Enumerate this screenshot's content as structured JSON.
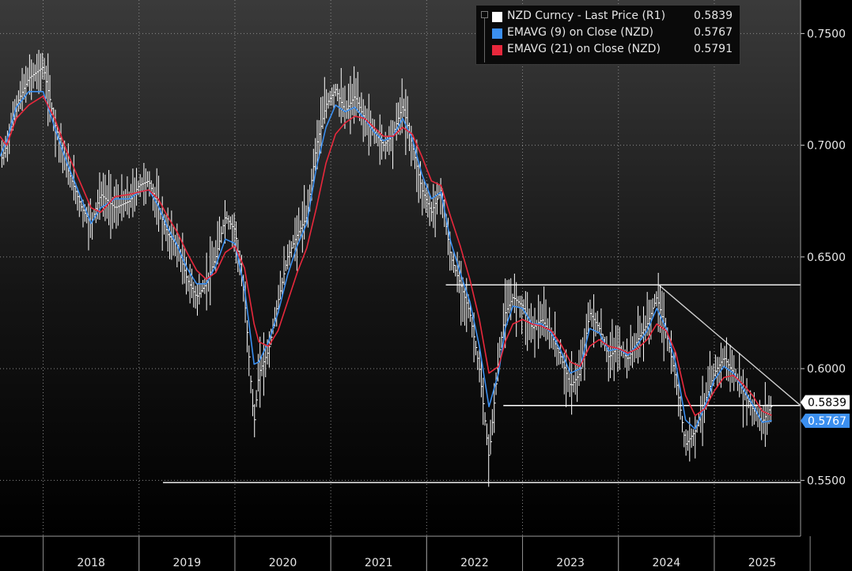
{
  "legend": {
    "items": [
      {
        "label": "NZD Curncy  - Last Price (R1)",
        "value": "0.5839",
        "color": "#ffffff"
      },
      {
        "label": "EMAVG (9)  on Close (NZD)",
        "value": "0.5767",
        "color": "#3b8ff0"
      },
      {
        "label": "EMAVG (21)  on Close (NZD)",
        "value": "0.5791",
        "color": "#e8283c"
      }
    ]
  },
  "chart_data": {
    "type": "line",
    "title": "",
    "xlabel": "",
    "ylabel": "",
    "x_ticks": [
      "2018",
      "2019",
      "2020",
      "2021",
      "2022",
      "2023",
      "2024",
      "2025"
    ],
    "y_ticks": [
      "0.7500",
      "0.7000",
      "0.6500",
      "0.6000",
      "0.5500"
    ],
    "xlim": [
      2017.55,
      2025.9
    ],
    "ylim": [
      0.525,
      0.765
    ],
    "grid": true,
    "series": [
      {
        "name": "NZD Curncy  - Last Price (R1)",
        "color": "#ffffff",
        "x": [
          2017.55,
          2017.62,
          2017.72,
          2017.85,
          2018.0,
          2018.12,
          2018.25,
          2018.4,
          2018.5,
          2018.6,
          2018.75,
          2018.9,
          2019.0,
          2019.1,
          2019.2,
          2019.3,
          2019.4,
          2019.5,
          2019.6,
          2019.7,
          2019.8,
          2019.9,
          2020.0,
          2020.1,
          2020.2,
          2020.25,
          2020.35,
          2020.45,
          2020.55,
          2020.65,
          2020.75,
          2020.85,
          2020.95,
          2021.05,
          2021.15,
          2021.25,
          2021.35,
          2021.45,
          2021.55,
          2021.65,
          2021.75,
          2021.85,
          2021.95,
          2022.05,
          2022.15,
          2022.25,
          2022.35,
          2022.45,
          2022.55,
          2022.65,
          2022.75,
          2022.82,
          2022.9,
          2023.0,
          2023.1,
          2023.2,
          2023.3,
          2023.4,
          2023.5,
          2023.6,
          2023.7,
          2023.8,
          2023.9,
          2024.0,
          2024.1,
          2024.2,
          2024.3,
          2024.4,
          2024.5,
          2024.6,
          2024.7,
          2024.8,
          2024.9,
          2025.0,
          2025.1,
          2025.2,
          2025.3,
          2025.4,
          2025.5,
          2025.6
        ],
        "values": [
          0.692,
          0.7,
          0.718,
          0.73,
          0.735,
          0.71,
          0.69,
          0.672,
          0.665,
          0.678,
          0.672,
          0.675,
          0.682,
          0.684,
          0.672,
          0.66,
          0.655,
          0.64,
          0.632,
          0.638,
          0.65,
          0.668,
          0.662,
          0.632,
          0.575,
          0.598,
          0.608,
          0.63,
          0.65,
          0.66,
          0.668,
          0.7,
          0.718,
          0.725,
          0.715,
          0.722,
          0.712,
          0.706,
          0.7,
          0.705,
          0.718,
          0.7,
          0.68,
          0.67,
          0.68,
          0.65,
          0.638,
          0.625,
          0.6,
          0.56,
          0.605,
          0.625,
          0.632,
          0.628,
          0.618,
          0.622,
          0.615,
          0.605,
          0.592,
          0.598,
          0.625,
          0.618,
          0.605,
          0.61,
          0.604,
          0.613,
          0.62,
          0.632,
          0.616,
          0.595,
          0.566,
          0.572,
          0.585,
          0.598,
          0.605,
          0.598,
          0.59,
          0.582,
          0.576,
          0.5839
        ]
      },
      {
        "name": "EMAVG (9)  on Close (NZD)",
        "color": "#3b8ff0",
        "x": [
          2017.55,
          2017.62,
          2017.72,
          2017.85,
          2018.0,
          2018.12,
          2018.25,
          2018.4,
          2018.5,
          2018.6,
          2018.75,
          2018.9,
          2019.0,
          2019.1,
          2019.2,
          2019.3,
          2019.4,
          2019.5,
          2019.6,
          2019.7,
          2019.8,
          2019.9,
          2020.0,
          2020.1,
          2020.2,
          2020.25,
          2020.35,
          2020.45,
          2020.55,
          2020.65,
          2020.75,
          2020.85,
          2020.95,
          2021.05,
          2021.15,
          2021.25,
          2021.35,
          2021.45,
          2021.55,
          2021.65,
          2021.75,
          2021.85,
          2021.95,
          2022.05,
          2022.15,
          2022.25,
          2022.35,
          2022.45,
          2022.55,
          2022.65,
          2022.75,
          2022.82,
          2022.9,
          2023.0,
          2023.1,
          2023.2,
          2023.3,
          2023.4,
          2023.5,
          2023.6,
          2023.7,
          2023.8,
          2023.9,
          2024.0,
          2024.1,
          2024.2,
          2024.3,
          2024.4,
          2024.5,
          2024.6,
          2024.7,
          2024.8,
          2024.9,
          2025.0,
          2025.1,
          2025.2,
          2025.3,
          2025.4,
          2025.5,
          2025.6
        ],
        "values": [
          0.695,
          0.702,
          0.717,
          0.724,
          0.724,
          0.708,
          0.692,
          0.676,
          0.665,
          0.672,
          0.676,
          0.676,
          0.679,
          0.68,
          0.673,
          0.663,
          0.655,
          0.645,
          0.638,
          0.638,
          0.646,
          0.658,
          0.656,
          0.636,
          0.602,
          0.603,
          0.612,
          0.625,
          0.642,
          0.655,
          0.665,
          0.69,
          0.708,
          0.718,
          0.715,
          0.717,
          0.712,
          0.706,
          0.702,
          0.704,
          0.712,
          0.703,
          0.687,
          0.676,
          0.679,
          0.657,
          0.643,
          0.63,
          0.61,
          0.583,
          0.598,
          0.618,
          0.628,
          0.627,
          0.62,
          0.62,
          0.616,
          0.608,
          0.598,
          0.6,
          0.618,
          0.616,
          0.608,
          0.609,
          0.606,
          0.611,
          0.617,
          0.627,
          0.618,
          0.602,
          0.577,
          0.573,
          0.583,
          0.595,
          0.601,
          0.598,
          0.591,
          0.584,
          0.576,
          0.5767
        ]
      },
      {
        "name": "EMAVG (21)  on Close (NZD)",
        "color": "#e8283c",
        "x": [
          2017.55,
          2017.62,
          2017.72,
          2017.85,
          2018.0,
          2018.12,
          2018.25,
          2018.4,
          2018.5,
          2018.6,
          2018.75,
          2018.9,
          2019.0,
          2019.1,
          2019.2,
          2019.3,
          2019.4,
          2019.5,
          2019.6,
          2019.7,
          2019.8,
          2019.9,
          2020.0,
          2020.1,
          2020.2,
          2020.25,
          2020.35,
          2020.45,
          2020.55,
          2020.65,
          2020.75,
          2020.85,
          2020.95,
          2021.05,
          2021.15,
          2021.25,
          2021.35,
          2021.45,
          2021.55,
          2021.65,
          2021.75,
          2021.85,
          2021.95,
          2022.05,
          2022.15,
          2022.25,
          2022.35,
          2022.45,
          2022.55,
          2022.65,
          2022.75,
          2022.82,
          2022.9,
          2023.0,
          2023.1,
          2023.2,
          2023.3,
          2023.4,
          2023.5,
          2023.6,
          2023.7,
          2023.8,
          2023.9,
          2024.0,
          2024.1,
          2024.2,
          2024.3,
          2024.4,
          2024.5,
          2024.6,
          2024.7,
          2024.8,
          2024.9,
          2025.0,
          2025.1,
          2025.2,
          2025.3,
          2025.4,
          2025.5,
          2025.6
        ],
        "values": [
          0.704,
          0.7,
          0.712,
          0.718,
          0.722,
          0.712,
          0.697,
          0.682,
          0.672,
          0.67,
          0.677,
          0.678,
          0.679,
          0.68,
          0.676,
          0.668,
          0.661,
          0.652,
          0.644,
          0.64,
          0.643,
          0.652,
          0.655,
          0.645,
          0.62,
          0.612,
          0.61,
          0.617,
          0.63,
          0.643,
          0.654,
          0.672,
          0.692,
          0.705,
          0.71,
          0.713,
          0.712,
          0.708,
          0.704,
          0.704,
          0.708,
          0.705,
          0.695,
          0.684,
          0.682,
          0.668,
          0.655,
          0.64,
          0.622,
          0.598,
          0.601,
          0.612,
          0.62,
          0.622,
          0.62,
          0.619,
          0.617,
          0.611,
          0.603,
          0.601,
          0.61,
          0.613,
          0.61,
          0.609,
          0.607,
          0.609,
          0.613,
          0.62,
          0.617,
          0.607,
          0.588,
          0.579,
          0.582,
          0.59,
          0.596,
          0.597,
          0.593,
          0.588,
          0.581,
          0.5791
        ]
      }
    ],
    "reference_lines": [
      {
        "type": "horizontal",
        "y": 0.549,
        "x_start": 2019.25,
        "x_end": 2025.9,
        "color": "#ffffff"
      },
      {
        "type": "horizontal",
        "y": 0.5835,
        "x_start": 2022.8,
        "x_end": 2025.9,
        "color": "#ffffff"
      },
      {
        "type": "horizontal",
        "y": 0.6375,
        "x_start": 2022.2,
        "x_end": 2025.9,
        "color": "#ffffff"
      },
      {
        "type": "diagonal",
        "x_start": 2024.42,
        "y_start": 0.6375,
        "x_end": 2025.9,
        "y_end": 0.5835,
        "color": "#cfcfcf"
      }
    ],
    "price_labels": [
      {
        "text": "0.5839",
        "value": 0.5839,
        "bg": "#ffffff",
        "fg": "#000000"
      },
      {
        "text": "0.5767",
        "value": 0.5767,
        "bg": "#3b8ff0",
        "fg": "#ffffff"
      }
    ]
  }
}
